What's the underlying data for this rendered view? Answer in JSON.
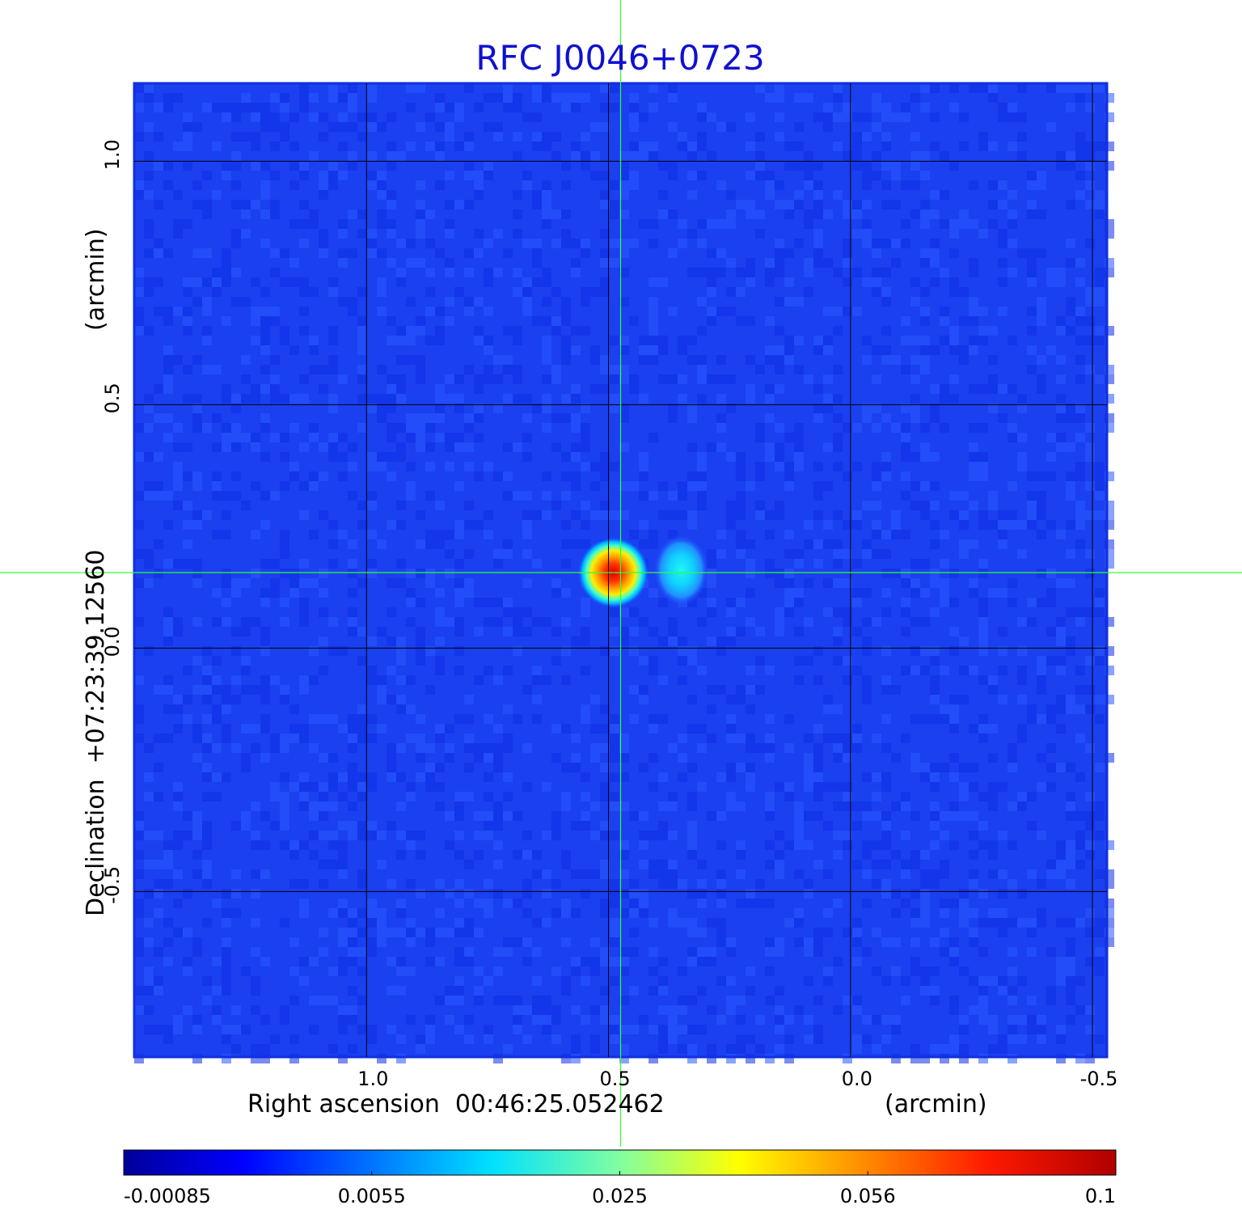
{
  "chart_data": {
    "type": "heatmap",
    "title": "RFC J0046+0723",
    "title_color": "#1010d0",
    "xlabel": "Right ascension  00:46:25.052462",
    "xunit": "(arcmin)",
    "ylabel": "Declination  +07:23:39.12560",
    "yunit": "(arcmin)",
    "x_ticks": [
      "1.0",
      "0.5",
      "0.0",
      "-0.5"
    ],
    "x_tick_values": [
      1.0,
      0.5,
      0.0,
      -0.5
    ],
    "y_ticks": [
      "1.0",
      "0.5",
      "0.0",
      "-0.5"
    ],
    "y_tick_values": [
      1.0,
      0.5,
      0.0,
      -0.5
    ],
    "xlim": [
      1.48,
      -0.53
    ],
    "ylim": [
      -0.84,
      1.16
    ],
    "grid": true,
    "crosshair": {
      "x": 0.475,
      "y": 0.155,
      "color": "#33ff33"
    },
    "sources": [
      {
        "x": 0.49,
        "y": 0.155,
        "peak": 0.1
      },
      {
        "x": 0.35,
        "y": 0.16,
        "peak": 0.017
      }
    ],
    "colormap": "jet",
    "colorbar_ticks": [
      "-0.00085",
      "0.0055",
      "0.025",
      "0.056",
      "0.1"
    ],
    "colorbar_range": [
      -0.00085,
      0.1
    ]
  }
}
